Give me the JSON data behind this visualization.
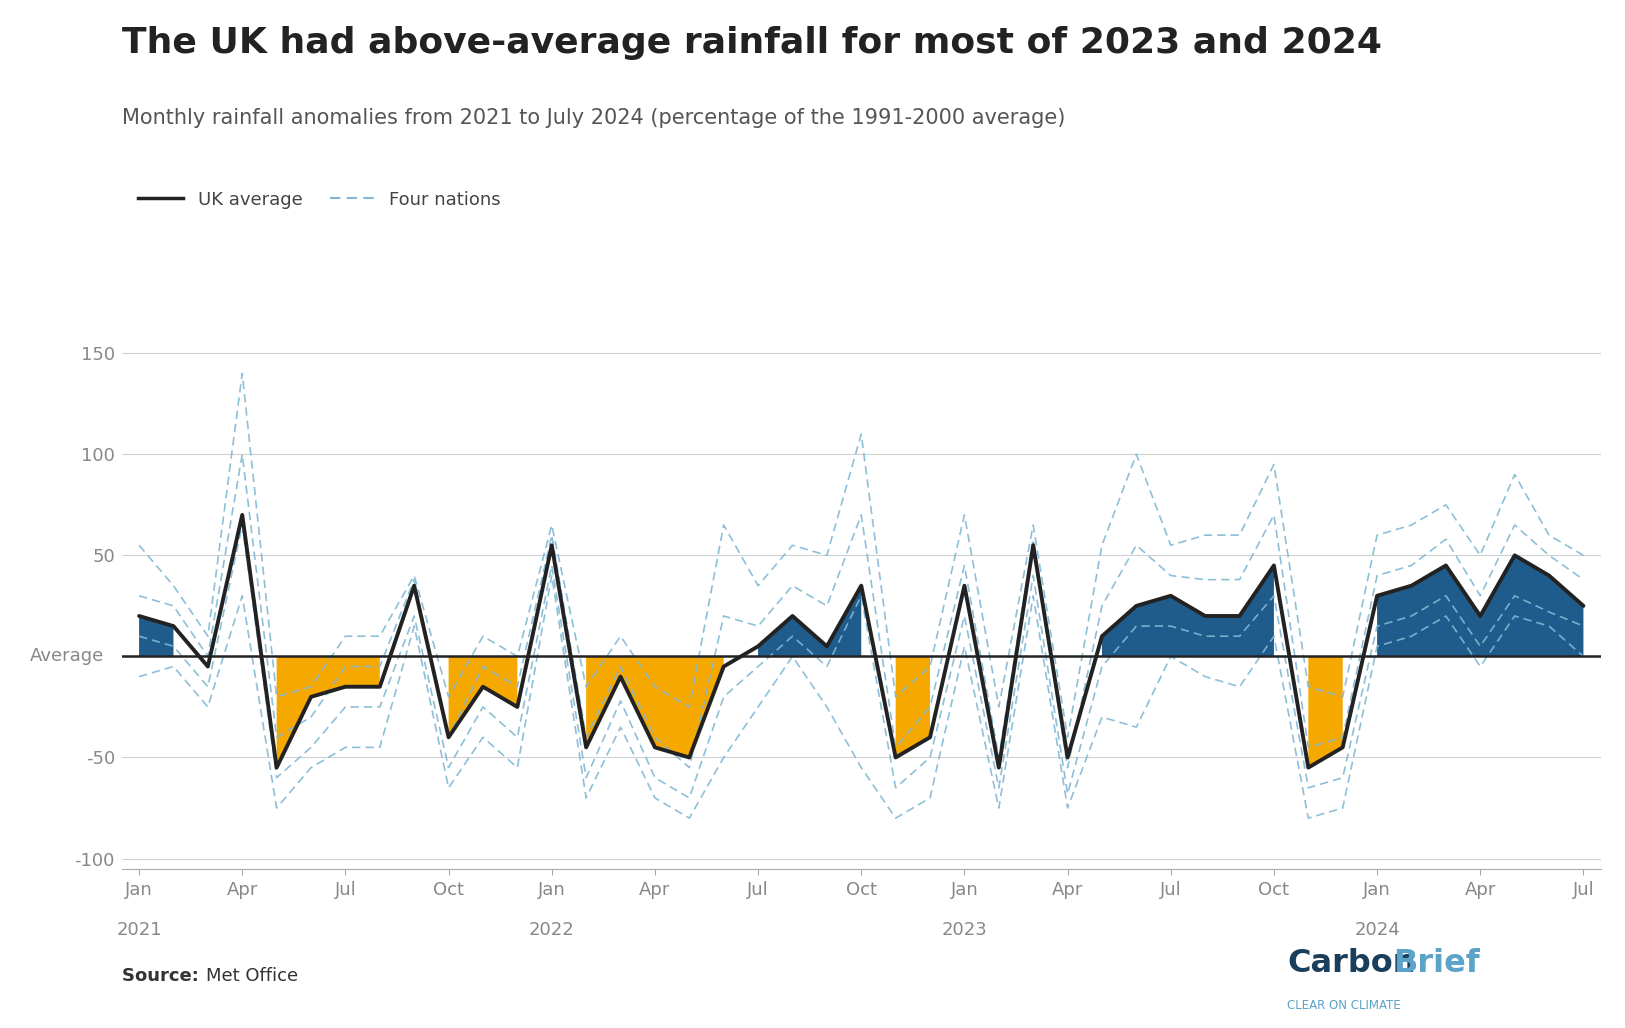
{
  "title": "The UK had above-average rainfall for most of 2023 and 2024",
  "subtitle": "Monthly rainfall anomalies from 2021 to July 2024 (percentage of the 1991-2000 average)",
  "source_bold": "Source: ",
  "source_normal": "Met Office",
  "title_fontsize": 26,
  "subtitle_fontsize": 15,
  "ylim": [
    -105,
    162
  ],
  "yticks": [
    -100,
    -50,
    0,
    50,
    100,
    150
  ],
  "bg_color": "#ffffff",
  "uk_color": "#222222",
  "above_color": "#1F5C8B",
  "below_color": "#F5A800",
  "nations_color": "#82B8D4",
  "uk_linewidth": 2.8,
  "nations_linewidth": 1.2,
  "uk_avg": [
    20,
    15,
    -5,
    70,
    -55,
    -20,
    -15,
    -15,
    35,
    -40,
    -15,
    -25,
    55,
    -45,
    -10,
    -45,
    -50,
    -5,
    5,
    20,
    5,
    35,
    -50,
    -40,
    35,
    -55,
    55,
    -50,
    10,
    25,
    30,
    20,
    20,
    45,
    -55,
    -45,
    30,
    35,
    45,
    20,
    50,
    40,
    25
  ],
  "nations_lines": [
    [
      55,
      35,
      10,
      140,
      -20,
      -15,
      10,
      10,
      40,
      -20,
      10,
      0,
      65,
      -15,
      10,
      -15,
      -25,
      65,
      35,
      55,
      50,
      110,
      -20,
      -5,
      70,
      -25,
      65,
      -40,
      55,
      100,
      55,
      60,
      60,
      95,
      -15,
      -20,
      60,
      65,
      75,
      50,
      90,
      60,
      50
    ],
    [
      30,
      25,
      0,
      100,
      -40,
      -30,
      -5,
      -5,
      38,
      -40,
      -5,
      -15,
      60,
      -40,
      -5,
      -40,
      -55,
      20,
      15,
      35,
      25,
      70,
      -45,
      -25,
      45,
      -50,
      58,
      -55,
      25,
      55,
      40,
      38,
      38,
      70,
      -45,
      -40,
      40,
      45,
      58,
      30,
      65,
      50,
      38
    ],
    [
      10,
      5,
      -15,
      65,
      -60,
      -45,
      -25,
      -25,
      20,
      -55,
      -25,
      -40,
      45,
      -60,
      -22,
      -60,
      -70,
      -20,
      -5,
      10,
      -5,
      30,
      -65,
      -50,
      20,
      -65,
      40,
      -68,
      -5,
      15,
      15,
      10,
      10,
      30,
      -65,
      -60,
      15,
      20,
      30,
      5,
      30,
      22,
      15
    ],
    [
      -10,
      -5,
      -25,
      30,
      -75,
      -55,
      -45,
      -45,
      15,
      -65,
      -40,
      -55,
      40,
      -70,
      -35,
      -70,
      -80,
      -50,
      -25,
      0,
      -25,
      -55,
      -80,
      -70,
      5,
      -75,
      30,
      -75,
      -30,
      -35,
      0,
      -10,
      -15,
      10,
      -80,
      -75,
      5,
      10,
      20,
      -5,
      20,
      15,
      0
    ]
  ],
  "xtick_months": [
    0,
    3,
    6,
    9,
    12,
    15,
    18,
    21,
    24,
    27,
    30,
    33,
    36,
    39,
    42
  ],
  "xtick_labels": [
    "Jan",
    "Apr",
    "Jul",
    "Oct",
    "Jan",
    "Apr",
    "Jul",
    "Oct",
    "Jan",
    "Apr",
    "Jul",
    "Oct",
    "Jan",
    "Apr",
    "Jul"
  ],
  "year_ticks": [
    0,
    12,
    24,
    36
  ],
  "year_labels": [
    "2021",
    "2022",
    "2023",
    "2024"
  ],
  "cb_dark": "#1a3f5c",
  "cb_light": "#5ba3c9",
  "grid_color": "#d0d0d0",
  "spine_color": "#aaaaaa",
  "tick_color": "#888888"
}
